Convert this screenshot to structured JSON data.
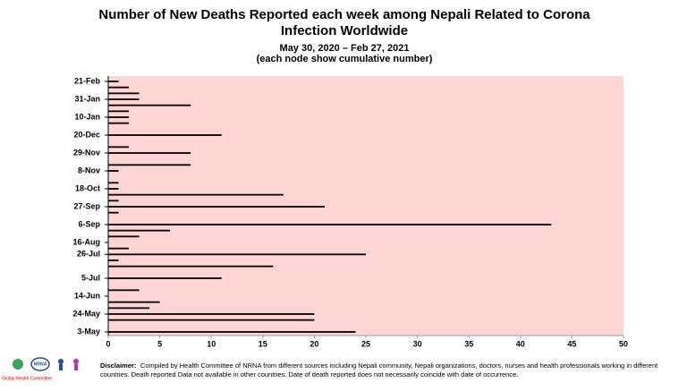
{
  "chart_data": {
    "type": "hbar",
    "title": [
      "Number of New Deaths Reported each week among Nepali Related to Corona",
      "Infection Worldwide"
    ],
    "subtitle": [
      "May 30, 2020 – Feb 27, 2021",
      "(each node show cumulative number)"
    ],
    "categories": [
      "3-May",
      null,
      null,
      "24-May",
      null,
      null,
      "14-Jun",
      null,
      null,
      "5-Jul",
      null,
      null,
      null,
      "26-Jul",
      null,
      "16-Aug",
      null,
      null,
      "6-Sep",
      null,
      null,
      "27-Sep",
      null,
      null,
      "18-Oct",
      null,
      null,
      "8-Nov",
      null,
      null,
      "29-Nov",
      null,
      null,
      "20-Dec",
      null,
      null,
      "10-Jan",
      null,
      null,
      "31-Jan",
      null,
      null,
      "21-Feb"
    ],
    "values": [
      24,
      0,
      20,
      20,
      4,
      5,
      0,
      3,
      0,
      11,
      0,
      16,
      1,
      25,
      2,
      0,
      3,
      6,
      43,
      0,
      1,
      21,
      1,
      17,
      1,
      1,
      0,
      1,
      8,
      0,
      8,
      2,
      0,
      11,
      0,
      2,
      2,
      2,
      8,
      3,
      3,
      2,
      1
    ],
    "color": "#000000",
    "background": "#fcd5d4",
    "xlim": [
      0,
      50
    ],
    "xticks": [
      0,
      5,
      10,
      15,
      20,
      25,
      30,
      35,
      40,
      45,
      50
    ],
    "disclaimer_label": "Disclaimer:",
    "disclaimer": [
      "Compiled by Health Committee  of NRNA from different sources including Nepali community, Nepali organizations, doctors, nurses and health professionals working in different",
      "countries. Death reported Data not available in other countries. Date of death reported does not necessarily coincide with date of occurrence."
    ],
    "logo_text": "NRNA",
    "logo_caption": "Global Health Committee"
  }
}
